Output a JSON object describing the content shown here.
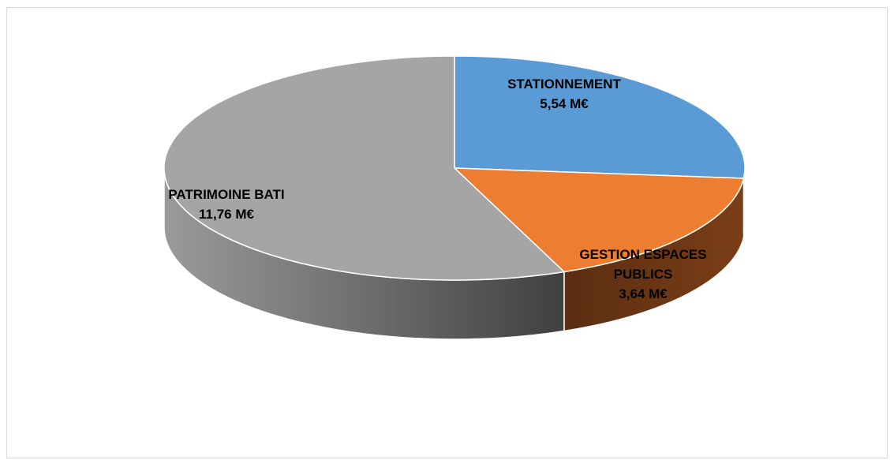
{
  "chart_data": {
    "type": "pie",
    "style": "3d",
    "title": "",
    "slices": [
      {
        "name": "STATIONNEMENT",
        "lines": [
          "STATIONNEMENT",
          "5,54 M€"
        ],
        "value": 5.54,
        "color": "#5b9bd5"
      },
      {
        "name": "GESTION ESPACES PUBLICS",
        "lines": [
          "GESTION ESPACES",
          "PUBLICS",
          "3,64 M€"
        ],
        "value": 3.64,
        "color": "#ed7d31"
      },
      {
        "name": "PATRIMOINE BATI",
        "lines": [
          "PATRIMOINE BATI",
          "11,76 M€"
        ],
        "value": 11.76,
        "color": "#a5a5a5"
      }
    ],
    "legend": "none"
  }
}
